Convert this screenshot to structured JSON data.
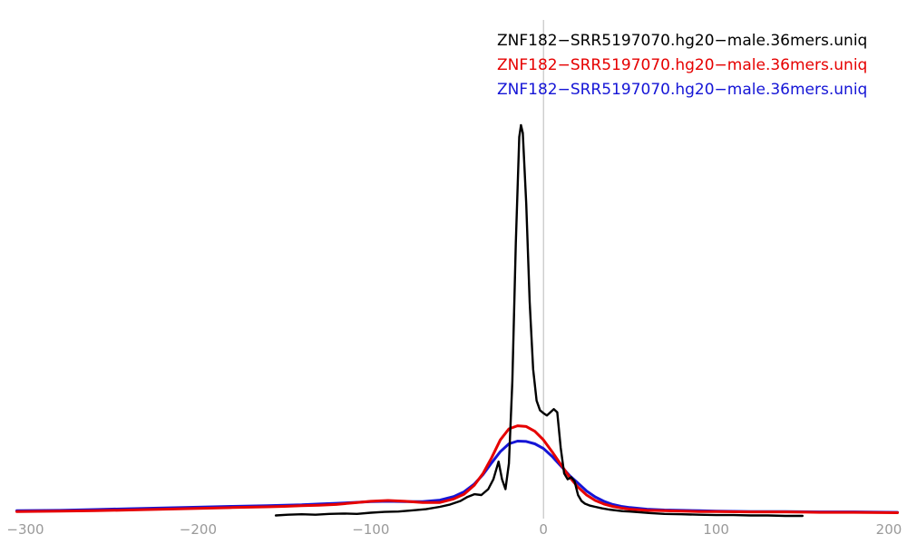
{
  "chart_data": {
    "type": "line",
    "title": "",
    "xlabel": "",
    "ylabel": "",
    "xlim": [
      -300,
      200
    ],
    "ylim": [
      0,
      1
    ],
    "grid": false,
    "legend_position": "top-right",
    "zero_line": {
      "x": 0,
      "color": "#b8b8b8"
    },
    "axis_tick_color": "#9a9a9a",
    "x_ticks": [
      {
        "value": -300,
        "label": "−300"
      },
      {
        "value": -200,
        "label": "−200"
      },
      {
        "value": -100,
        "label": "−100"
      },
      {
        "value": 0,
        "label": "0"
      },
      {
        "value": 100,
        "label": "100"
      },
      {
        "value": 200,
        "label": "200"
      }
    ],
    "series": [
      {
        "name": "blue-series",
        "label": "ZNF182−SRR5197070.hg20−male.36mers.uniq",
        "color": "#1515d6",
        "width": 3,
        "points": [
          [
            -305,
            0.02
          ],
          [
            -280,
            0.021
          ],
          [
            -260,
            0.023
          ],
          [
            -240,
            0.025
          ],
          [
            -220,
            0.027
          ],
          [
            -200,
            0.029
          ],
          [
            -180,
            0.031
          ],
          [
            -160,
            0.033
          ],
          [
            -150,
            0.034
          ],
          [
            -140,
            0.035
          ],
          [
            -130,
            0.037
          ],
          [
            -120,
            0.039
          ],
          [
            -110,
            0.041
          ],
          [
            -100,
            0.043
          ],
          [
            -90,
            0.044
          ],
          [
            -80,
            0.043
          ],
          [
            -70,
            0.043
          ],
          [
            -60,
            0.047
          ],
          [
            -52,
            0.056
          ],
          [
            -46,
            0.068
          ],
          [
            -40,
            0.088
          ],
          [
            -35,
            0.112
          ],
          [
            -30,
            0.142
          ],
          [
            -25,
            0.17
          ],
          [
            -20,
            0.19
          ],
          [
            -15,
            0.197
          ],
          [
            -10,
            0.196
          ],
          [
            -5,
            0.19
          ],
          [
            0,
            0.178
          ],
          [
            5,
            0.158
          ],
          [
            10,
            0.134
          ],
          [
            15,
            0.11
          ],
          [
            20,
            0.09
          ],
          [
            25,
            0.07
          ],
          [
            30,
            0.055
          ],
          [
            35,
            0.044
          ],
          [
            40,
            0.036
          ],
          [
            45,
            0.031
          ],
          [
            50,
            0.028
          ],
          [
            60,
            0.024
          ],
          [
            70,
            0.022
          ],
          [
            80,
            0.021
          ],
          [
            90,
            0.02
          ],
          [
            100,
            0.019
          ],
          [
            120,
            0.018
          ],
          [
            140,
            0.018
          ],
          [
            160,
            0.017
          ],
          [
            180,
            0.017
          ],
          [
            205,
            0.016
          ]
        ]
      },
      {
        "name": "red-series",
        "label": "ZNF182−SRR5197070.hg20−male.36mers.uniq",
        "color": "#e60000",
        "width": 3,
        "points": [
          [
            -305,
            0.018
          ],
          [
            -280,
            0.019
          ],
          [
            -260,
            0.02
          ],
          [
            -240,
            0.022
          ],
          [
            -220,
            0.024
          ],
          [
            -200,
            0.026
          ],
          [
            -180,
            0.028
          ],
          [
            -160,
            0.03
          ],
          [
            -150,
            0.031
          ],
          [
            -140,
            0.033
          ],
          [
            -130,
            0.034
          ],
          [
            -120,
            0.036
          ],
          [
            -110,
            0.04
          ],
          [
            -100,
            0.044
          ],
          [
            -90,
            0.046
          ],
          [
            -80,
            0.044
          ],
          [
            -70,
            0.041
          ],
          [
            -60,
            0.041
          ],
          [
            -52,
            0.05
          ],
          [
            -46,
            0.062
          ],
          [
            -40,
            0.085
          ],
          [
            -35,
            0.115
          ],
          [
            -30,
            0.155
          ],
          [
            -25,
            0.2
          ],
          [
            -20,
            0.228
          ],
          [
            -15,
            0.236
          ],
          [
            -10,
            0.234
          ],
          [
            -5,
            0.222
          ],
          [
            0,
            0.2
          ],
          [
            5,
            0.17
          ],
          [
            10,
            0.138
          ],
          [
            15,
            0.106
          ],
          [
            20,
            0.08
          ],
          [
            25,
            0.06
          ],
          [
            30,
            0.046
          ],
          [
            35,
            0.037
          ],
          [
            40,
            0.031
          ],
          [
            45,
            0.027
          ],
          [
            50,
            0.024
          ],
          [
            60,
            0.021
          ],
          [
            70,
            0.02
          ],
          [
            80,
            0.019
          ],
          [
            90,
            0.018
          ],
          [
            100,
            0.018
          ],
          [
            120,
            0.017
          ],
          [
            140,
            0.017
          ],
          [
            160,
            0.016
          ],
          [
            180,
            0.016
          ],
          [
            205,
            0.015
          ]
        ]
      },
      {
        "name": "black-series",
        "label": "ZNF182−SRR5197070.hg20−male.36mers.uniq",
        "color": "#000000",
        "width": 2.4,
        "points": [
          [
            -155,
            0.008
          ],
          [
            -148,
            0.01
          ],
          [
            -140,
            0.011
          ],
          [
            -132,
            0.01
          ],
          [
            -124,
            0.012
          ],
          [
            -116,
            0.013
          ],
          [
            -108,
            0.012
          ],
          [
            -100,
            0.015
          ],
          [
            -92,
            0.017
          ],
          [
            -84,
            0.018
          ],
          [
            -76,
            0.021
          ],
          [
            -68,
            0.024
          ],
          [
            -60,
            0.03
          ],
          [
            -54,
            0.036
          ],
          [
            -48,
            0.045
          ],
          [
            -44,
            0.055
          ],
          [
            -40,
            0.062
          ],
          [
            -36,
            0.06
          ],
          [
            -32,
            0.075
          ],
          [
            -29,
            0.1
          ],
          [
            -26,
            0.145
          ],
          [
            -24,
            0.1
          ],
          [
            -22,
            0.075
          ],
          [
            -20,
            0.14
          ],
          [
            -18,
            0.35
          ],
          [
            -16,
            0.7
          ],
          [
            -14,
            0.97
          ],
          [
            -13,
            1.0
          ],
          [
            -12,
            0.98
          ],
          [
            -10,
            0.8
          ],
          [
            -8,
            0.55
          ],
          [
            -6,
            0.38
          ],
          [
            -4,
            0.3
          ],
          [
            -2,
            0.275
          ],
          [
            0,
            0.268
          ],
          [
            2,
            0.262
          ],
          [
            4,
            0.27
          ],
          [
            6,
            0.278
          ],
          [
            8,
            0.27
          ],
          [
            10,
            0.18
          ],
          [
            12,
            0.115
          ],
          [
            14,
            0.1
          ],
          [
            16,
            0.105
          ],
          [
            18,
            0.095
          ],
          [
            20,
            0.06
          ],
          [
            22,
            0.045
          ],
          [
            24,
            0.038
          ],
          [
            27,
            0.033
          ],
          [
            30,
            0.03
          ],
          [
            34,
            0.026
          ],
          [
            38,
            0.023
          ],
          [
            42,
            0.021
          ],
          [
            46,
            0.019
          ],
          [
            50,
            0.018
          ],
          [
            56,
            0.016
          ],
          [
            62,
            0.014
          ],
          [
            70,
            0.012
          ],
          [
            80,
            0.011
          ],
          [
            90,
            0.01
          ],
          [
            100,
            0.009
          ],
          [
            110,
            0.009
          ],
          [
            120,
            0.008
          ],
          [
            130,
            0.008
          ],
          [
            140,
            0.007
          ],
          [
            150,
            0.007
          ]
        ]
      }
    ]
  }
}
